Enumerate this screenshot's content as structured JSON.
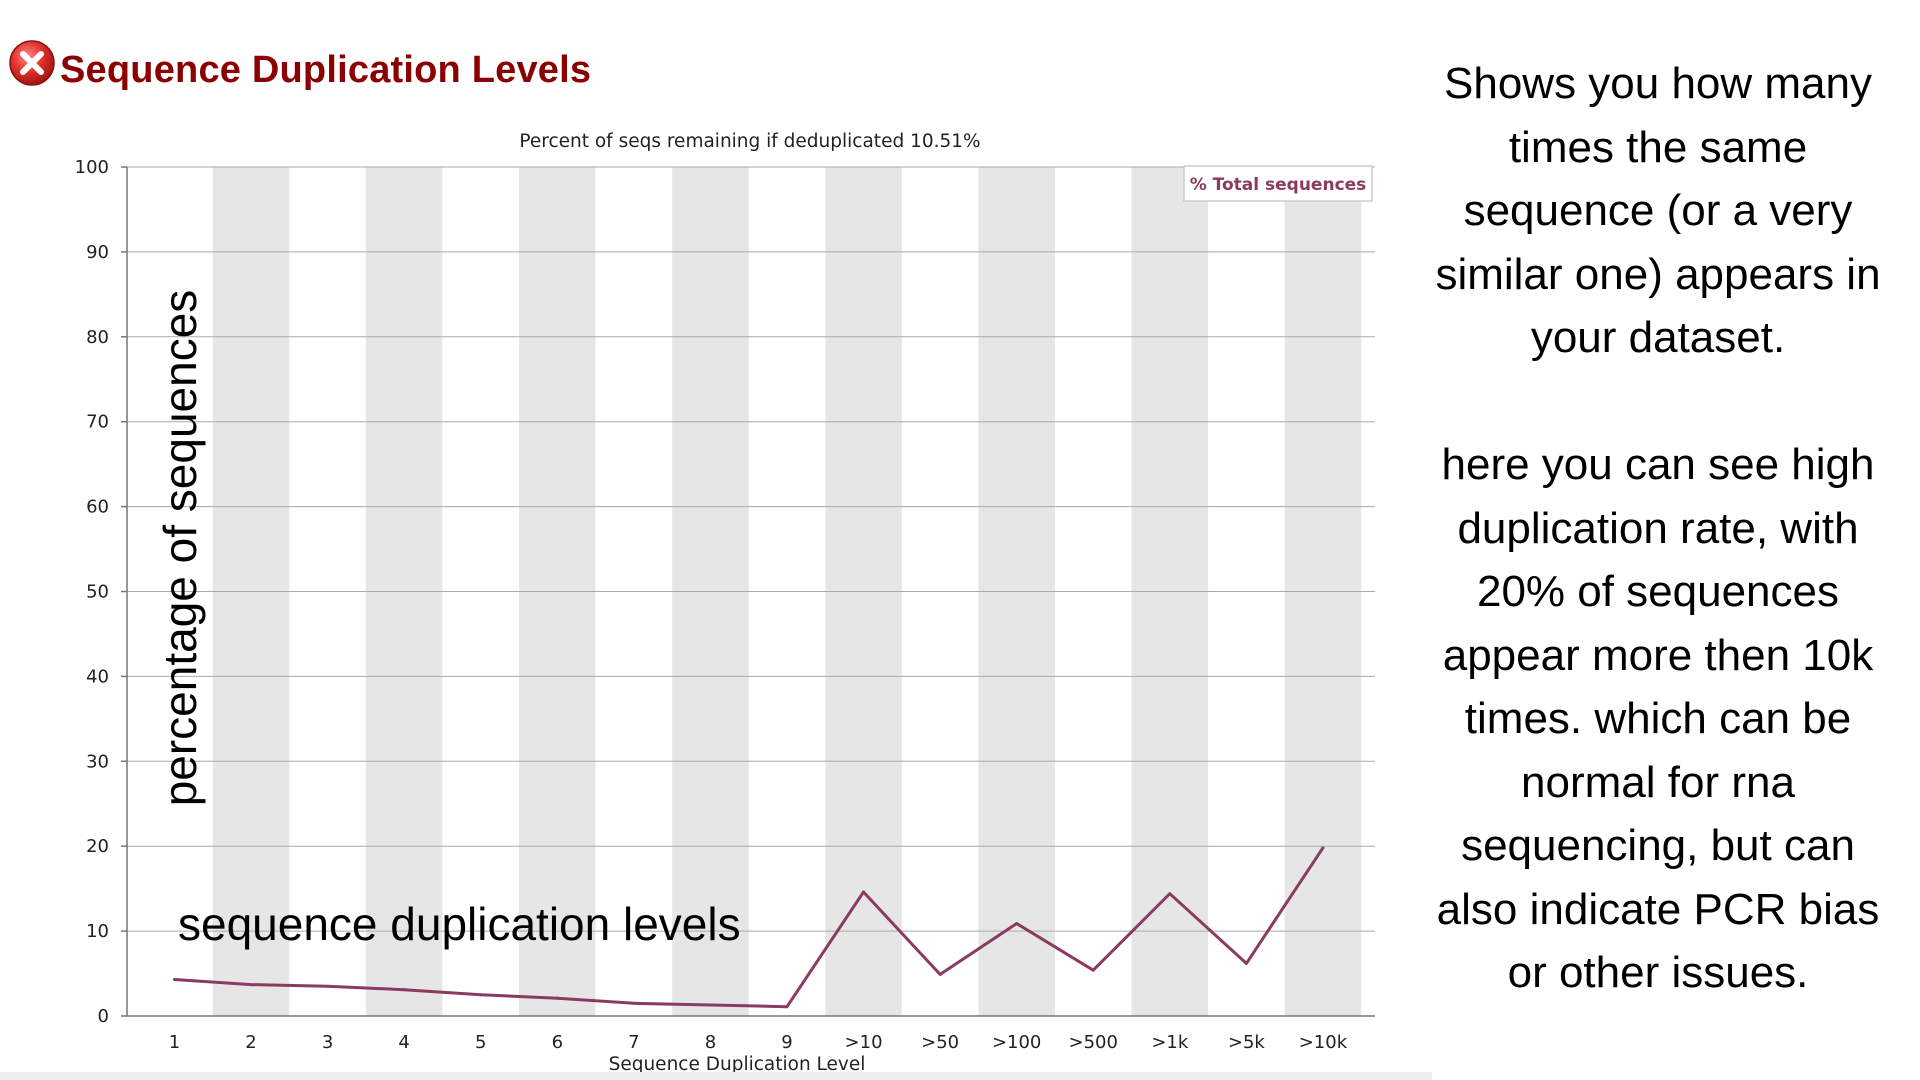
{
  "header": {
    "title": "Sequence Duplication Levels",
    "status_icon": "fail-icon",
    "status_color": "#e0302c"
  },
  "annotations": {
    "y_overlay": "percentage of sequences",
    "x_overlay": "sequence duplication levels"
  },
  "description": {
    "paragraph1": "Shows you how many times the same sequence (or a very similar one) appears in your dataset.",
    "paragraph2": "here you can see high duplication rate, with 20% of sequences appear more then 10k times. which can be normal for rna sequencing, but can also indicate PCR bias or other issues."
  },
  "chart_data": {
    "type": "line",
    "title": "Percent of seqs remaining if deduplicated 10.51%",
    "xlabel": "Sequence Duplication Level",
    "ylabel": "",
    "categories": [
      "1",
      "2",
      "3",
      "4",
      "5",
      "6",
      "7",
      "8",
      "9",
      ">10",
      ">50",
      ">100",
      ">500",
      ">1k",
      ">5k",
      ">10k"
    ],
    "series": [
      {
        "name": "% Total sequences",
        "color": "#8b3a62",
        "values": [
          4.3,
          3.7,
          3.5,
          3.1,
          2.5,
          2.1,
          1.5,
          1.3,
          1.1,
          14.6,
          4.9,
          10.9,
          5.4,
          14.4,
          6.2,
          19.8
        ]
      }
    ],
    "ylim": [
      0,
      100
    ],
    "yticks": [
      0,
      10,
      20,
      30,
      40,
      50,
      60,
      70,
      80,
      90,
      100
    ],
    "grid": true,
    "legend": "top-right",
    "band_color": "#e6e6e6",
    "grid_color": "#aaaaaa"
  }
}
